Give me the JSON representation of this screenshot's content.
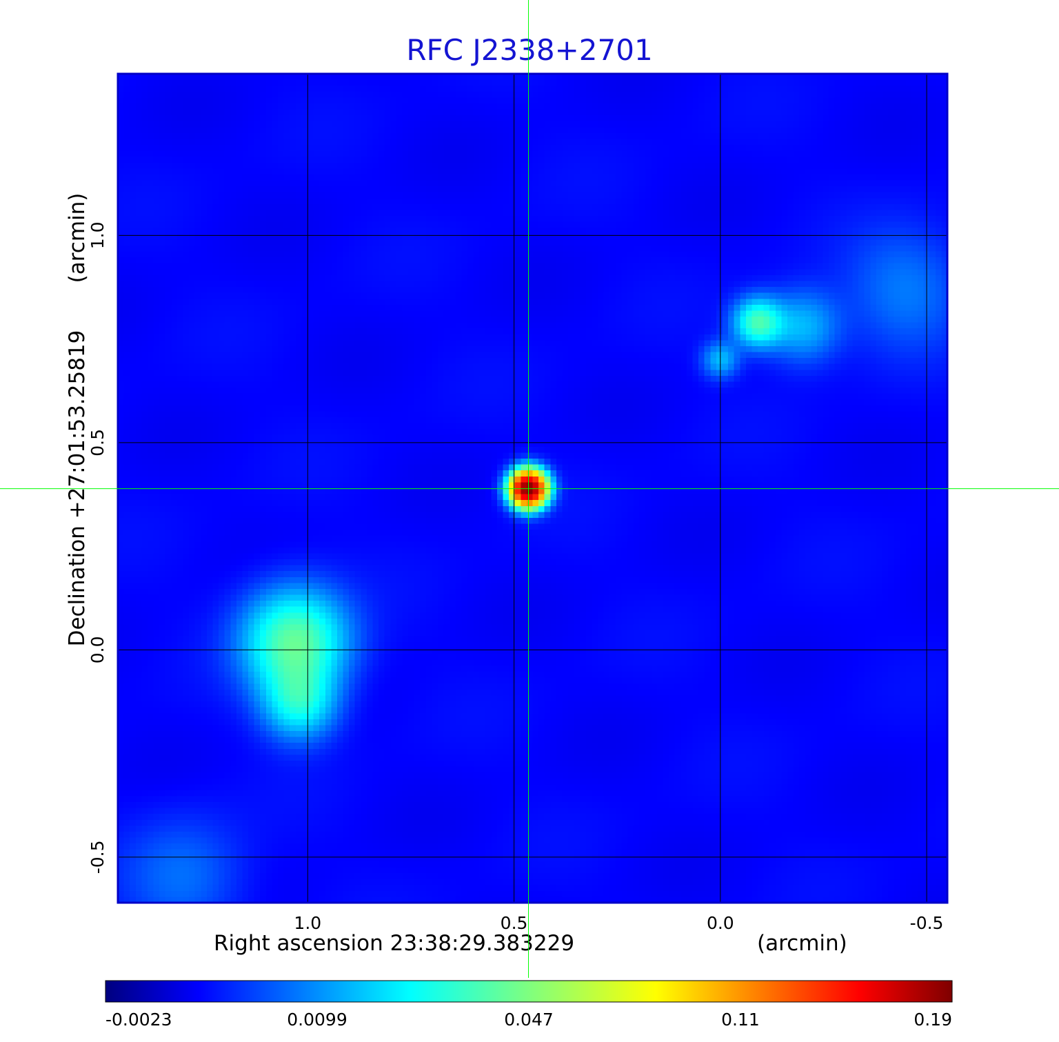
{
  "chart_data": {
    "type": "heatmap",
    "title": "RFC J2338+2701",
    "xlabel": "Right ascension  23:38:29.383229",
    "xunit": "(arcmin)",
    "ylabel": "Declination  +27:01:53.25819",
    "yunit": "(arcmin)",
    "xlim": [
      1.46,
      -0.55
    ],
    "ylim": [
      -0.61,
      1.39
    ],
    "xticks": [
      {
        "value": 1.0,
        "label": "1.0"
      },
      {
        "value": 0.5,
        "label": "0.5"
      },
      {
        "value": 0.0,
        "label": "0.0"
      },
      {
        "value": -0.5,
        "label": "-0.5"
      }
    ],
    "yticks": [
      {
        "value": 1.0,
        "label": "1.0"
      },
      {
        "value": 0.5,
        "label": "0.5"
      },
      {
        "value": 0.0,
        "label": "0.0"
      },
      {
        "value": -0.5,
        "label": "-0.5"
      }
    ],
    "grid": true,
    "crosshair": {
      "x": 0.465,
      "y": 0.389
    },
    "colormap": "jet",
    "colorbar": {
      "min": -0.0023,
      "max": 0.19,
      "labels": [
        "-0.0023",
        "0.0099",
        "0.047",
        "0.11",
        "0.19"
      ]
    },
    "sources": [
      {
        "x": 0.465,
        "y": 0.389,
        "peak": 0.19,
        "size": 0.028
      },
      {
        "x": 1.03,
        "y": 0.02,
        "peak": 0.035,
        "size": 0.085
      },
      {
        "x": 1.02,
        "y": -0.13,
        "peak": 0.022,
        "size": 0.06
      },
      {
        "x": -0.09,
        "y": 0.79,
        "peak": 0.03,
        "size": 0.04
      },
      {
        "x": -0.2,
        "y": 0.78,
        "peak": 0.015,
        "size": 0.06
      },
      {
        "x": 0.0,
        "y": 0.7,
        "peak": 0.015,
        "size": 0.03
      },
      {
        "x": -0.45,
        "y": 0.87,
        "peak": 0.009,
        "size": 0.1
      },
      {
        "x": 1.3,
        "y": -0.55,
        "peak": 0.008,
        "size": 0.1
      }
    ],
    "colors": {
      "title": "#1414d2",
      "frame": "#0000c8",
      "grid": "#000000",
      "crosshair": "#00ff00",
      "background": "#1448f0"
    }
  }
}
